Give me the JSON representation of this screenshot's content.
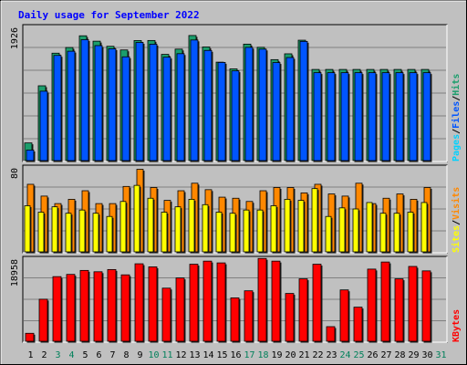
{
  "chart_data": [
    {
      "type": "bar",
      "title": "Daily usage for September 2022",
      "legend": [
        "Pages",
        "Files",
        "Hits"
      ],
      "legend_separator": "/",
      "y_max_label": "1926",
      "ylim": [
        0,
        1926
      ],
      "categories": [
        "1",
        "2",
        "3",
        "4",
        "5",
        "6",
        "7",
        "8",
        "9",
        "10",
        "11",
        "12",
        "13",
        "14",
        "15",
        "16",
        "17",
        "18",
        "19",
        "20",
        "21",
        "22",
        "23",
        "24",
        "25",
        "26",
        "27",
        "28",
        "29",
        "30",
        "31"
      ],
      "weekend_days": [
        "3",
        "4",
        "10",
        "11",
        "17",
        "18",
        "24",
        "25",
        "31"
      ],
      "series": [
        {
          "name": "Hits",
          "values": [
            252,
            1067,
            1532,
            1613,
            1780,
            1703,
            1630,
            1578,
            1712,
            1713,
            1515,
            1590,
            1784,
            1621,
            1404,
            1308,
            1661,
            1616,
            1440,
            1523,
            1717,
            1300,
            1300,
            1300,
            1300,
            1300,
            1300,
            1300,
            1300,
            1300,
            0
          ]
        },
        {
          "name": "Files",
          "values": [
            150,
            990,
            1500,
            1560,
            1725,
            1640,
            1595,
            1480,
            1685,
            1660,
            1475,
            1525,
            1720,
            1571,
            1400,
            1280,
            1615,
            1590,
            1398,
            1470,
            1700,
            1254,
            1254,
            1254,
            1254,
            1254,
            1254,
            1254,
            1254,
            1254,
            0
          ]
        },
        {
          "name": "Pages",
          "values": [
            0,
            0,
            0,
            0,
            0,
            0,
            0,
            0,
            0,
            0,
            0,
            0,
            0,
            0,
            0,
            0,
            0,
            0,
            0,
            0,
            0,
            0,
            0,
            0,
            0,
            0,
            0,
            0,
            0,
            0,
            0
          ]
        }
      ],
      "colors": {
        "Hits": "#1b9e6c",
        "Files": "#0055ff",
        "Pages": "#00d2ff"
      }
    },
    {
      "type": "bar",
      "legend": [
        "Sites",
        "Visits"
      ],
      "legend_separator": "/",
      "y_max_label": "80",
      "ylim": [
        0,
        80
      ],
      "categories": [
        "1",
        "2",
        "3",
        "4",
        "5",
        "6",
        "7",
        "8",
        "9",
        "10",
        "11",
        "12",
        "13",
        "14",
        "15",
        "16",
        "17",
        "18",
        "19",
        "20",
        "21",
        "22",
        "23",
        "24",
        "25",
        "26",
        "27",
        "28",
        "29",
        "30",
        "31"
      ],
      "series": [
        {
          "name": "Visits",
          "values": [
            63,
            52,
            45,
            49,
            57,
            45,
            45,
            61,
            77,
            60,
            48,
            57,
            64,
            58,
            51,
            50,
            47,
            57,
            60,
            60,
            55,
            63,
            54,
            52,
            64,
            45,
            50,
            54,
            49,
            60,
            0
          ]
        },
        {
          "name": "Sites",
          "values": [
            43,
            37,
            42,
            36,
            39,
            36,
            33,
            47,
            62,
            50,
            37,
            42,
            49,
            44,
            37,
            36,
            39,
            39,
            43,
            49,
            48,
            59,
            33,
            41,
            40,
            46,
            36,
            36,
            37,
            46,
            0
          ]
        }
      ],
      "colors": {
        "Visits": "#ff8800",
        "Sites": "#ffff00"
      }
    },
    {
      "type": "bar",
      "legend": [
        "KBytes"
      ],
      "y_max_label": "18958",
      "ylim": [
        0,
        18958
      ],
      "categories": [
        "1",
        "2",
        "3",
        "4",
        "5",
        "6",
        "7",
        "8",
        "9",
        "10",
        "11",
        "12",
        "13",
        "14",
        "15",
        "16",
        "17",
        "18",
        "19",
        "20",
        "21",
        "22",
        "23",
        "24",
        "25",
        "26",
        "27",
        "28",
        "29",
        "30",
        "31"
      ],
      "series": [
        {
          "name": "KBytes",
          "values": [
            1800,
            9500,
            14600,
            15100,
            16000,
            15700,
            16200,
            15000,
            17500,
            16800,
            12000,
            14300,
            17400,
            18100,
            17700,
            9800,
            11400,
            18700,
            18100,
            10800,
            14100,
            17400,
            3300,
            11600,
            7700,
            16300,
            17900,
            14100,
            16900,
            15900,
            0
          ]
        }
      ],
      "colors": {
        "KBytes": "#ff0000"
      }
    }
  ]
}
